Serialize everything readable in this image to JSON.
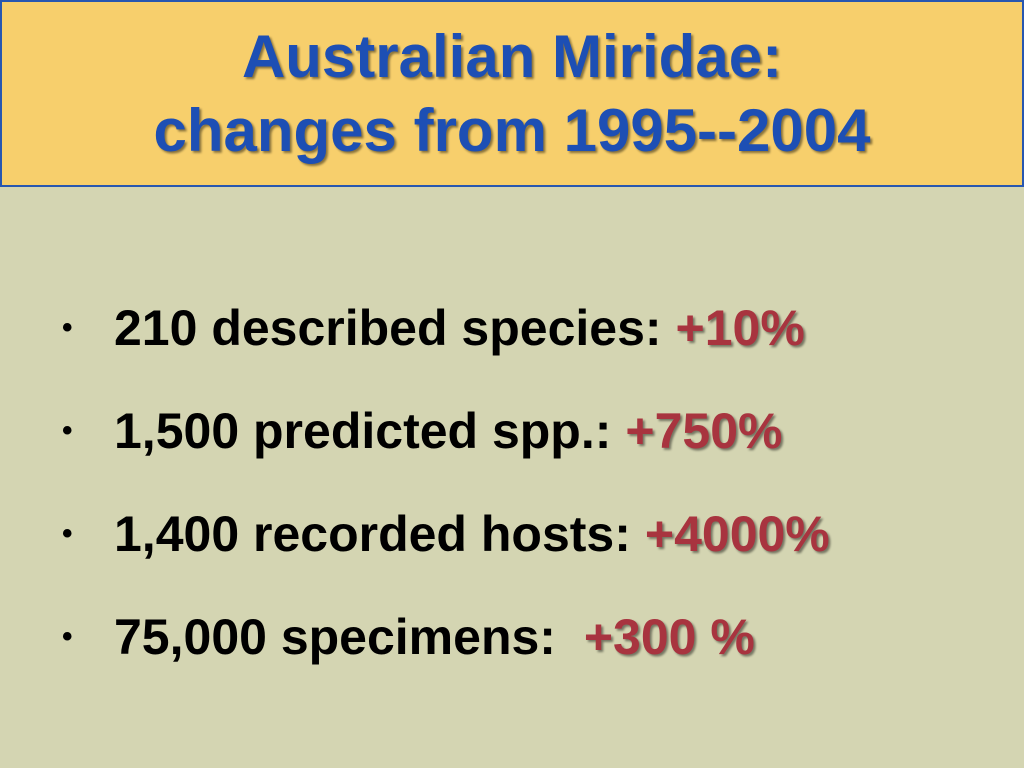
{
  "title": {
    "line1": "Australian Miridae:",
    "line2": "changes from 1995--2004"
  },
  "bullets": [
    {
      "marker": "•",
      "text": "210 described species:",
      "change": "+10%"
    },
    {
      "marker": "•",
      "text": "1,500 predicted spp.:",
      "change": "+750%"
    },
    {
      "marker": "•",
      "text": "1,400 recorded hosts:",
      "change": "+4000%"
    },
    {
      "marker": "•",
      "text": "75,000 specimens: ",
      "change": "+300 %"
    }
  ],
  "colors": {
    "background": "#d4d5b2",
    "title_background": "#f7cf6c",
    "title_text": "#1d4fb4",
    "title_border": "#2857b0",
    "change_text": "#a8343f"
  }
}
